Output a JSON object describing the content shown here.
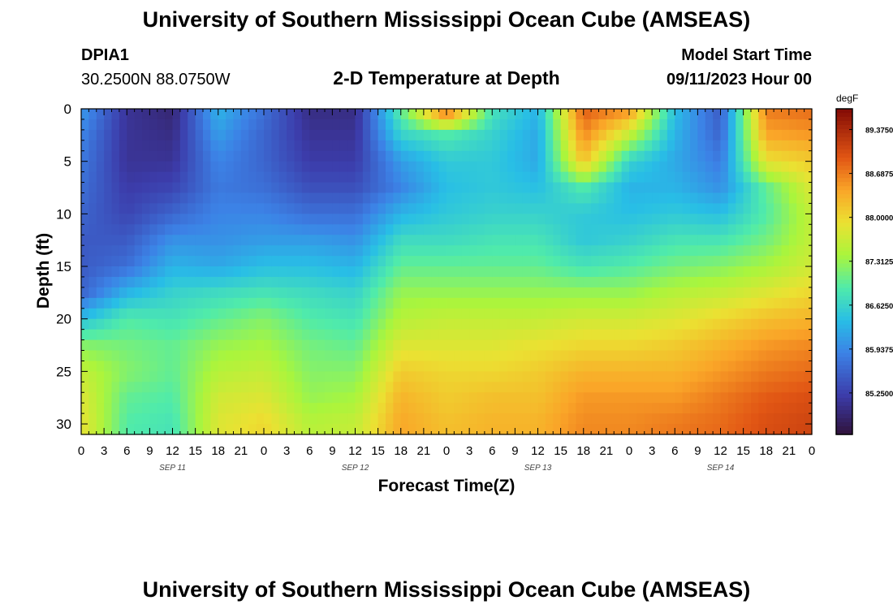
{
  "header": {
    "title": "University of Southern Mississippi Ocean Cube (AMSEAS)",
    "station_id": "DPIA1",
    "station_coords": "30.2500N  88.0750W",
    "plot_title": "2-D Temperature at Depth",
    "model_start_label": "Model Start Time",
    "model_start_value": "09/11/2023 Hour 00"
  },
  "footer": {
    "repeat_title": "University of Southern Mississippi Ocean Cube (AMSEAS)"
  },
  "chart_data": {
    "type": "heatmap",
    "title": "2-D Temperature at Depth",
    "xlabel": "Forecast Time(Z)",
    "ylabel": "Depth (ft)",
    "x_hours": [
      0,
      96
    ],
    "y_range": [
      0,
      31
    ],
    "y_ticks": [
      0,
      5,
      10,
      15,
      20,
      25,
      30
    ],
    "x_tick_labels": [
      "0",
      "3",
      "6",
      "9",
      "12",
      "15",
      "18",
      "21",
      "0",
      "3",
      "6",
      "9",
      "12",
      "15",
      "18",
      "21",
      "0",
      "3",
      "6",
      "9",
      "12",
      "15",
      "18",
      "21",
      "0",
      "3",
      "6",
      "9",
      "12",
      "15",
      "18",
      "21",
      "0"
    ],
    "day_labels": [
      {
        "text": "SEP 11",
        "hour": 12
      },
      {
        "text": "SEP 12",
        "hour": 36
      },
      {
        "text": "SEP 13",
        "hour": 60
      },
      {
        "text": "SEP 14",
        "hour": 84
      }
    ],
    "colorbar": {
      "unit": "degF",
      "min": 84.6,
      "max": 89.7,
      "tick_labels": [
        "89.3750",
        "88.6875",
        "88.0000",
        "87.3125",
        "86.6250",
        "85.9375",
        "85.2500"
      ],
      "tick_values": [
        89.375,
        88.6875,
        88.0,
        87.3125,
        86.625,
        85.9375,
        85.25
      ]
    },
    "depth_profile_ft": [
      0,
      2.5,
      5,
      7.5,
      10,
      12.5,
      15,
      17.5,
      20,
      22.5,
      25,
      27.5,
      30
    ],
    "hourly_samples": [
      {
        "hour": 0,
        "temps": [
          86.1,
          85.9,
          85.8,
          85.7,
          85.6,
          85.5,
          85.5,
          85.6,
          86.4,
          87.2,
          87.6,
          87.8,
          87.9
        ]
      },
      {
        "hour": 6,
        "temps": [
          85.1,
          85.1,
          85.1,
          85.2,
          85.3,
          85.5,
          85.7,
          86.3,
          86.9,
          87.1,
          87.2,
          87.0,
          86.9
        ]
      },
      {
        "hour": 12,
        "temps": [
          84.9,
          85.0,
          85.1,
          85.3,
          85.6,
          86.0,
          86.3,
          86.6,
          86.8,
          87.0,
          87.0,
          86.9,
          86.8
        ]
      },
      {
        "hour": 18,
        "temps": [
          86.3,
          86.1,
          85.9,
          85.8,
          85.9,
          86.0,
          86.2,
          86.7,
          87.0,
          87.3,
          87.5,
          87.7,
          87.8
        ]
      },
      {
        "hour": 24,
        "temps": [
          85.7,
          85.6,
          85.6,
          85.7,
          85.9,
          86.1,
          86.4,
          86.8,
          87.2,
          87.4,
          87.6,
          87.8,
          88.0
        ]
      },
      {
        "hour": 30,
        "temps": [
          85.0,
          85.1,
          85.2,
          85.4,
          85.7,
          86.1,
          86.4,
          86.7,
          86.9,
          87.1,
          87.2,
          87.3,
          87.5
        ]
      },
      {
        "hour": 36,
        "temps": [
          85.0,
          85.1,
          85.2,
          85.4,
          85.7,
          86.0,
          86.3,
          86.6,
          86.8,
          87.0,
          87.2,
          87.4,
          87.6
        ]
      },
      {
        "hour": 42,
        "temps": [
          87.0,
          86.6,
          86.1,
          85.9,
          86.3,
          86.7,
          87.0,
          87.3,
          87.5,
          87.8,
          88.1,
          88.3,
          88.4
        ]
      },
      {
        "hour": 48,
        "temps": [
          89.0,
          86.9,
          86.5,
          86.4,
          86.5,
          86.7,
          87.0,
          87.3,
          87.6,
          87.8,
          88.0,
          88.1,
          88.2
        ]
      },
      {
        "hour": 54,
        "temps": [
          86.8,
          86.6,
          86.5,
          86.5,
          86.6,
          86.8,
          87.0,
          87.3,
          87.6,
          87.8,
          88.0,
          88.2,
          88.3
        ]
      },
      {
        "hour": 60,
        "temps": [
          86.3,
          86.2,
          86.2,
          86.4,
          86.6,
          86.8,
          87.0,
          87.3,
          87.6,
          87.9,
          88.1,
          88.2,
          88.3
        ]
      },
      {
        "hour": 66,
        "temps": [
          88.9,
          88.6,
          88.2,
          86.9,
          86.5,
          86.5,
          86.8,
          87.3,
          87.7,
          88.0,
          88.3,
          88.5,
          88.6
        ]
      },
      {
        "hour": 72,
        "temps": [
          88.6,
          87.6,
          86.6,
          86.3,
          86.4,
          86.6,
          86.9,
          87.3,
          87.7,
          88.0,
          88.3,
          88.5,
          88.6
        ]
      },
      {
        "hour": 78,
        "temps": [
          86.4,
          86.3,
          86.2,
          86.3,
          86.5,
          86.8,
          87.1,
          87.5,
          87.8,
          88.1,
          88.3,
          88.5,
          88.7
        ]
      },
      {
        "hour": 84,
        "temps": [
          85.5,
          85.6,
          85.8,
          86.0,
          86.4,
          86.8,
          87.2,
          87.6,
          88.0,
          88.3,
          88.5,
          88.7,
          88.8
        ]
      },
      {
        "hour": 90,
        "temps": [
          88.7,
          88.4,
          87.9,
          87.0,
          86.9,
          87.1,
          87.4,
          87.8,
          88.2,
          88.5,
          88.7,
          88.9,
          89.0
        ]
      },
      {
        "hour": 96,
        "temps": [
          88.8,
          88.5,
          88.1,
          87.8,
          87.6,
          87.6,
          87.7,
          88.0,
          88.3,
          88.6,
          88.8,
          89.0,
          89.1
        ]
      }
    ]
  }
}
